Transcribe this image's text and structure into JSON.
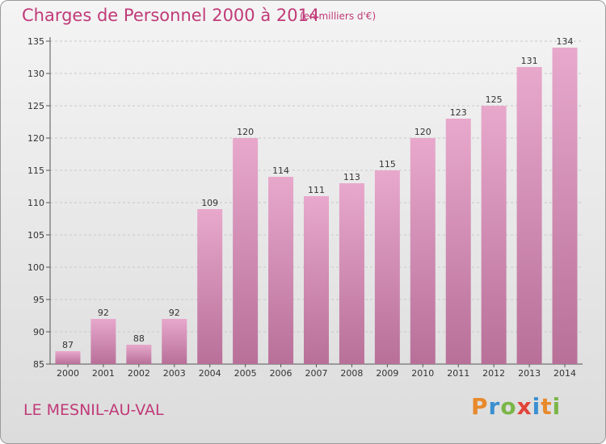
{
  "header": {
    "title": "Charges de Personnel 2000 à 2014",
    "subtitle": "(en milliers d'€)"
  },
  "footer": {
    "place": "LE MESNIL-AU-VAL",
    "logo": "Proxiti",
    "logo_colors": [
      "#e8892b",
      "#3b8fd1",
      "#7ab648",
      "#e2443a",
      "#3b8fd1",
      "#e8892b",
      "#7ab648"
    ]
  },
  "colors": {
    "bar_top": "#e8a8cc",
    "bar_bottom": "#b87099",
    "title": "#c03a78"
  },
  "chart_data": {
    "type": "bar",
    "title": "Charges de Personnel 2000 à 2014",
    "subtitle": "(en milliers d'€)",
    "categories": [
      "2000",
      "2001",
      "2002",
      "2003",
      "2004",
      "2005",
      "2006",
      "2007",
      "2008",
      "2009",
      "2010",
      "2011",
      "2012",
      "2013",
      "2014"
    ],
    "values": [
      87,
      92,
      88,
      92,
      109,
      120,
      114,
      111,
      113,
      115,
      120,
      123,
      125,
      131,
      134
    ],
    "ylim": [
      85,
      135
    ],
    "yticks": [
      85,
      90,
      95,
      100,
      105,
      110,
      115,
      120,
      125,
      130,
      135
    ],
    "grid": true,
    "xlabel": "",
    "ylabel": ""
  }
}
